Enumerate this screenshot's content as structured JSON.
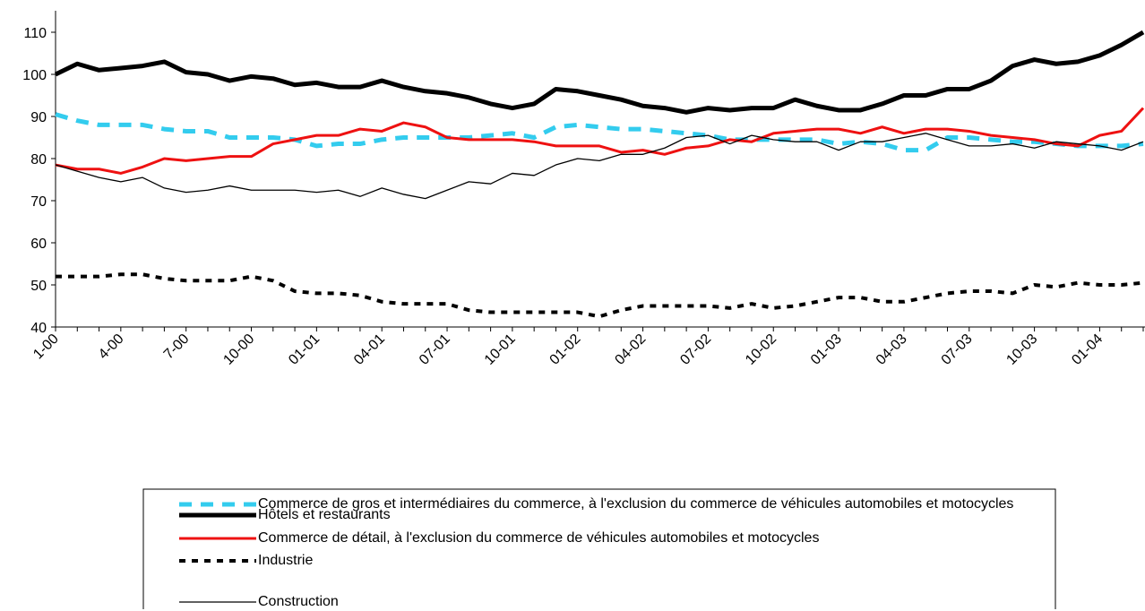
{
  "chart_data": {
    "type": "line",
    "categories": [
      "1-00",
      null,
      null,
      "4-00",
      null,
      null,
      "7-00",
      null,
      null,
      "10-00",
      null,
      null,
      "01-01",
      null,
      null,
      "04-01",
      null,
      null,
      "07-01",
      null,
      null,
      "10-01",
      null,
      null,
      "01-02",
      null,
      null,
      "04-02",
      null,
      null,
      "07-02",
      null,
      null,
      "10-02",
      null,
      null,
      "01-03",
      null,
      null,
      "04-03",
      null,
      null,
      "07-03",
      null,
      null,
      "10-03",
      null,
      null,
      "01-04",
      null,
      null
    ],
    "ylim": [
      40,
      110
    ],
    "yticks": [
      40,
      50,
      60,
      70,
      80,
      90,
      100,
      110
    ],
    "series": [
      {
        "name": "Commerce de gros et intermédiaires du commerce, à l'exclusion du commerce de véhicules automobiles et motocycles",
        "color": "#33ccee",
        "values": [
          90.5,
          89,
          88,
          88,
          88,
          87,
          86.5,
          86.5,
          85,
          85,
          85,
          84.5,
          83,
          83.5,
          83.5,
          84.5,
          85,
          85,
          85,
          85,
          85.5,
          86,
          85,
          87.5,
          88,
          87.5,
          87,
          87,
          86.5,
          86,
          85.5,
          84.5,
          84.5,
          84.5,
          84.5,
          84.5,
          83.5,
          84,
          83.5,
          82,
          82,
          85,
          85,
          84.5,
          84,
          84,
          83.5,
          83,
          83,
          83,
          83.5
        ]
      },
      {
        "name": "Commerce de détail, à l'exclusion du commerce de véhicules automobiles et motocycles",
        "color": "#ee1111",
        "values": [
          78.5,
          77.5,
          77.5,
          76.5,
          78,
          80,
          79.5,
          80,
          80.5,
          80.5,
          83.5,
          84.5,
          85.5,
          85.5,
          87,
          86.5,
          88.5,
          87.5,
          85,
          84.5,
          84.5,
          84.5,
          84,
          83,
          83,
          83,
          81.5,
          82,
          81,
          82.5,
          83,
          84.5,
          84,
          86,
          86.5,
          87,
          87,
          86,
          87.5,
          86,
          87,
          87,
          86.5,
          85.5,
          85,
          84.5,
          83.5,
          83,
          85.5,
          86.5,
          92
        ]
      },
      {
        "name": "Hôtels et restaurants",
        "color": "#000000",
        "values": [
          100,
          102.5,
          101,
          101.5,
          102,
          103,
          100.5,
          100,
          98.5,
          99.5,
          99,
          97.5,
          98,
          97,
          97,
          98.5,
          97,
          96,
          95.5,
          94.5,
          93,
          92,
          93,
          96.5,
          96,
          95,
          94,
          92.5,
          92,
          91,
          92,
          91.5,
          92,
          92,
          94,
          92.5,
          91.5,
          91.5,
          93,
          95,
          95,
          96.5,
          96.5,
          98.5,
          102,
          103.5,
          102.5,
          103,
          104.5,
          107,
          110
        ]
      },
      {
        "name": "Industrie",
        "color": "#000000",
        "values": [
          52,
          52,
          52,
          52.5,
          52.5,
          51.5,
          51,
          51,
          51,
          52,
          51,
          48.5,
          48,
          48,
          47.5,
          46,
          45.5,
          45.5,
          45.5,
          44,
          43.5,
          43.5,
          43.5,
          43.5,
          43.5,
          42.5,
          44,
          45,
          45,
          45,
          45,
          44.5,
          45.5,
          44.5,
          45,
          46,
          47,
          47,
          46,
          46,
          47,
          48,
          48.5,
          48.5,
          48,
          50,
          49.5,
          50.5,
          50,
          50,
          50.5
        ]
      },
      {
        "name": "Construction",
        "color": "#000000",
        "values": [
          78.5,
          77,
          75.5,
          74.5,
          75.5,
          73,
          72,
          72.5,
          73.5,
          72.5,
          72.5,
          72.5,
          72,
          72.5,
          71,
          73,
          71.5,
          70.5,
          72.5,
          74.5,
          74,
          76.5,
          76,
          78.5,
          80,
          79.5,
          81,
          81,
          82.5,
          85,
          85.5,
          83.5,
          85.5,
          84.5,
          84,
          84,
          82,
          84,
          84,
          85,
          86,
          84.5,
          83,
          83,
          83.5,
          82.5,
          84,
          83.5,
          83,
          82,
          84
        ]
      }
    ]
  }
}
